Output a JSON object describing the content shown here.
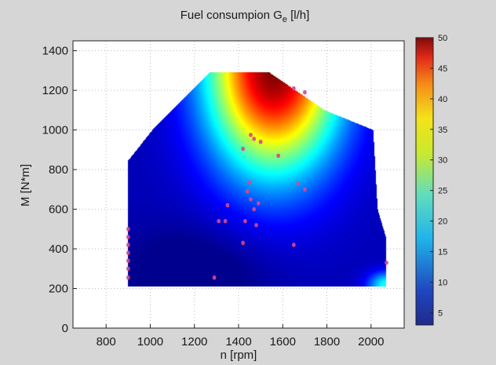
{
  "chart_data": {
    "type": "heatmap",
    "title": "Fuel consumpion G",
    "title_subscript": "e",
    "title_unit": " [l/h]",
    "xlabel": "n [rpm]",
    "ylabel": "M [N*m]",
    "xlim": [
      650,
      2150
    ],
    "ylim": [
      0,
      1450
    ],
    "xticks": [
      800,
      1000,
      1200,
      1400,
      1600,
      1800,
      2000
    ],
    "yticks": [
      0,
      200,
      400,
      600,
      800,
      1000,
      1200,
      1400
    ],
    "grid": true,
    "colorbar": {
      "range": [
        3,
        50
      ],
      "ticks": [
        5,
        10,
        15,
        20,
        25,
        30,
        35,
        40,
        45,
        50
      ],
      "colormap": "jet"
    },
    "region_boundary": [
      {
        "x": 900,
        "y": 210
      },
      {
        "x": 900,
        "y": 845
      },
      {
        "x": 1010,
        "y": 1000
      },
      {
        "x": 1270,
        "y": 1290
      },
      {
        "x": 1540,
        "y": 1290
      },
      {
        "x": 1790,
        "y": 1100
      },
      {
        "x": 2010,
        "y": 1000
      },
      {
        "x": 2030,
        "y": 600
      },
      {
        "x": 2070,
        "y": 450
      },
      {
        "x": 2070,
        "y": 210
      }
    ],
    "field_features": [
      {
        "kind": "base",
        "value": 5
      },
      {
        "kind": "max_peak",
        "x": 1560,
        "y": 1310,
        "value": 50
      },
      {
        "kind": "low_trough",
        "x": 1200,
        "y": 280,
        "value": 4
      },
      {
        "kind": "corner_peak",
        "x": 2075,
        "y": 215,
        "value": 22
      }
    ],
    "measured_points": [
      {
        "x": 900,
        "y": 500
      },
      {
        "x": 900,
        "y": 460
      },
      {
        "x": 900,
        "y": 420
      },
      {
        "x": 900,
        "y": 380
      },
      {
        "x": 900,
        "y": 340
      },
      {
        "x": 900,
        "y": 300
      },
      {
        "x": 900,
        "y": 255
      },
      {
        "x": 1290,
        "y": 255
      },
      {
        "x": 1310,
        "y": 540
      },
      {
        "x": 1340,
        "y": 540
      },
      {
        "x": 1350,
        "y": 620
      },
      {
        "x": 1420,
        "y": 430
      },
      {
        "x": 1430,
        "y": 540
      },
      {
        "x": 1440,
        "y": 690
      },
      {
        "x": 1450,
        "y": 735
      },
      {
        "x": 1455,
        "y": 650
      },
      {
        "x": 1470,
        "y": 600
      },
      {
        "x": 1480,
        "y": 520
      },
      {
        "x": 1490,
        "y": 630
      },
      {
        "x": 1455,
        "y": 975
      },
      {
        "x": 1470,
        "y": 955
      },
      {
        "x": 1500,
        "y": 940
      },
      {
        "x": 1420,
        "y": 905
      },
      {
        "x": 1580,
        "y": 870
      },
      {
        "x": 1650,
        "y": 420
      },
      {
        "x": 1670,
        "y": 730
      },
      {
        "x": 1700,
        "y": 700
      },
      {
        "x": 1700,
        "y": 1190
      },
      {
        "x": 1650,
        "y": 1210
      },
      {
        "x": 2070,
        "y": 330
      }
    ],
    "marker_color": "#d9468f"
  }
}
